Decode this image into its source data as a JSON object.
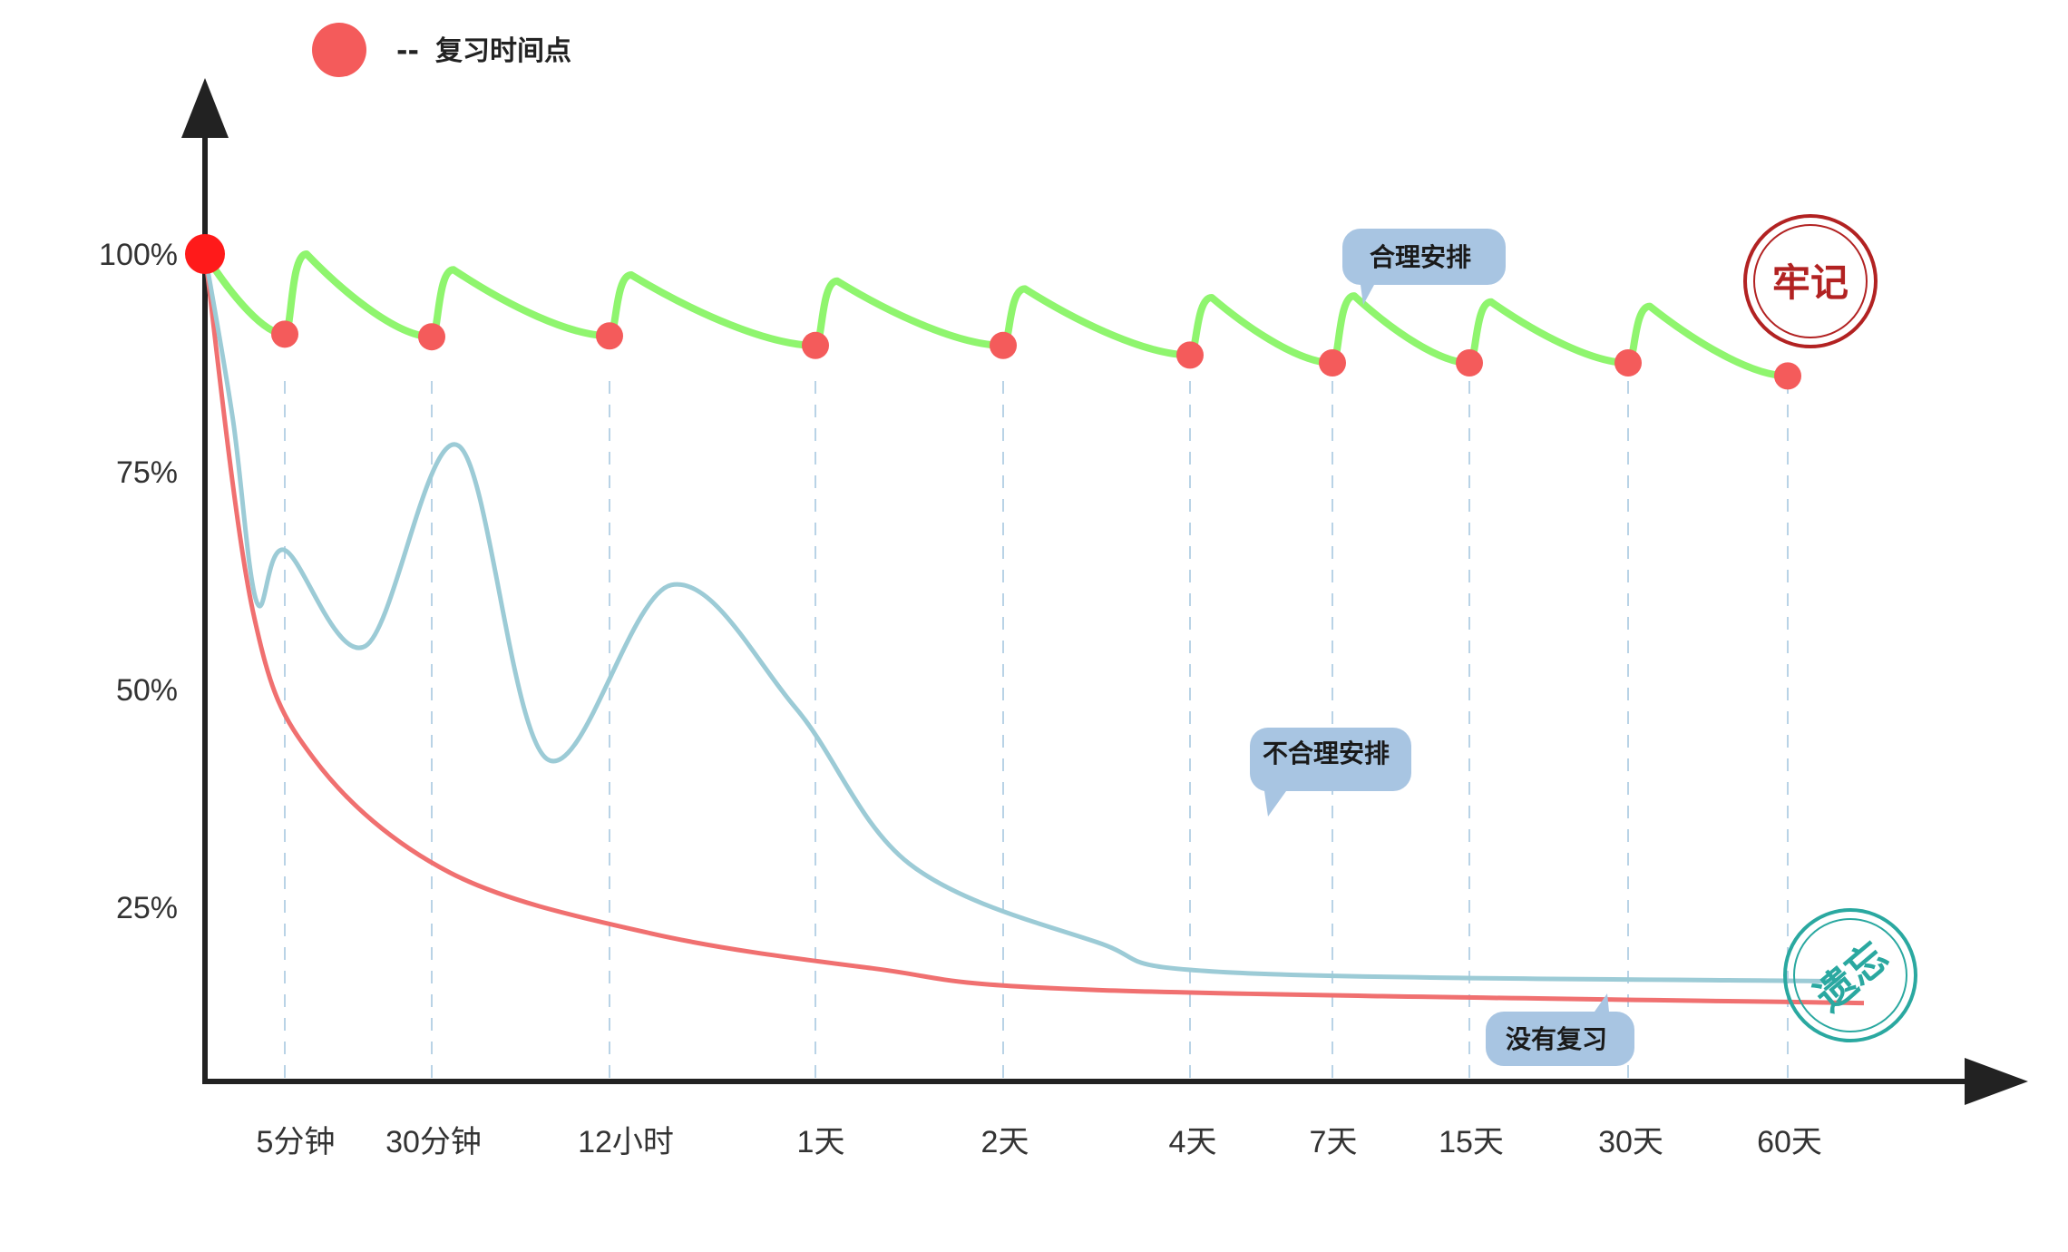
{
  "legend": {
    "dash": "--",
    "label": "复习时间点",
    "marker_color": "#f45b5b"
  },
  "chart_data": {
    "type": "line",
    "categories": [
      "5分钟",
      "30分钟",
      "12小时",
      "1天",
      "2天",
      "4天",
      "7天",
      "15天",
      "30天",
      "60天"
    ],
    "y_ticks": [
      "100%",
      "75%",
      "50%",
      "25%"
    ],
    "ylim": [
      0,
      1.1
    ],
    "grid": "dashed vertical lines at review points",
    "series": [
      {
        "name": "合理安排",
        "color": "#8ff56e",
        "review_values": [
          0.908,
          0.905,
          0.906,
          0.895,
          0.895,
          0.884,
          0.875,
          0.875,
          0.875,
          0.86
        ],
        "peak_values": [
          1.0,
          0.982,
          0.976,
          0.969,
          0.96,
          0.95,
          0.952,
          0.945,
          0.94
        ]
      },
      {
        "name": "不合理安排",
        "color": "#9ccbd6",
        "points": [
          [
            0,
            1.0
          ],
          [
            0.35,
            0.81
          ],
          [
            0.65,
            0.6
          ],
          [
            1.0,
            0.66
          ],
          [
            1.55,
            0.55
          ],
          [
            2.15,
            0.78
          ],
          [
            2.65,
            0.42
          ],
          [
            3.3,
            0.62
          ],
          [
            3.9,
            0.48
          ],
          [
            4.5,
            0.3
          ],
          [
            5.5,
            0.21
          ],
          [
            6.3,
            0.175
          ],
          [
            6.7,
            0.165
          ]
        ]
      },
      {
        "name": "没有复习",
        "color": "#f07070",
        "points": [
          [
            0,
            1.0
          ],
          [
            0.6,
            0.59
          ],
          [
            1.2,
            0.42
          ],
          [
            2.1,
            0.29
          ],
          [
            3.2,
            0.22
          ],
          [
            4.3,
            0.18
          ],
          [
            5.5,
            0.155
          ],
          [
            6.7,
            0.14
          ]
        ]
      }
    ]
  },
  "stamps": {
    "remember": {
      "text": "牢记",
      "color": "#b22222"
    },
    "forget": {
      "text": "遗忘",
      "color": "#2aa8a0"
    }
  },
  "callouts": {
    "good": "合理安排",
    "bad": "不合理安排",
    "none": "没有复习",
    "fill": "#a8c5e2"
  }
}
